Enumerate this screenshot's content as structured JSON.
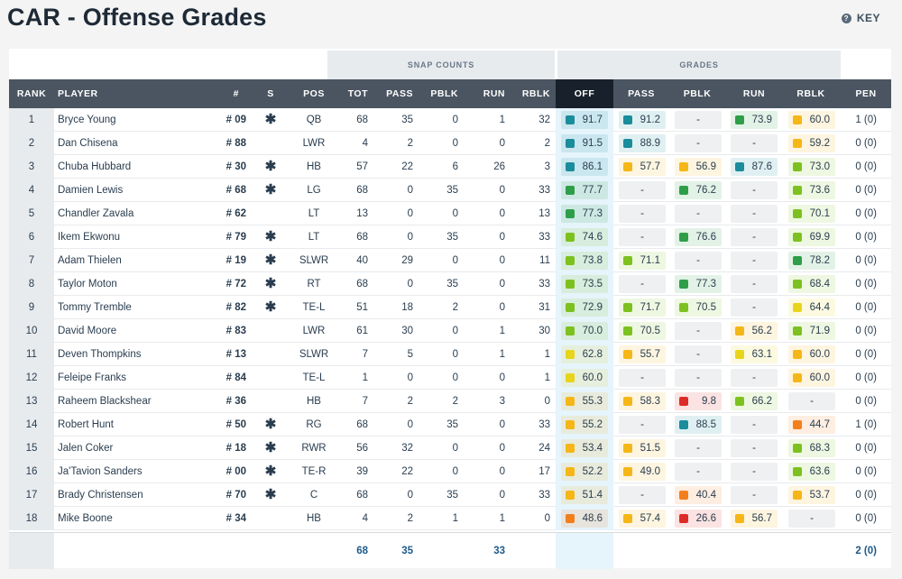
{
  "page": {
    "title": "CAR - Offense Grades",
    "key_label": "KEY"
  },
  "colors": {
    "teal": "#1a8c9c",
    "green": "#2e9e48",
    "lime": "#7cc11f",
    "yellow": "#e8d41b",
    "gold": "#f5b717",
    "orange": "#f37f1c",
    "red": "#dd2b27",
    "header_bg": "#4a5561",
    "active_header_bg": "#18212b"
  },
  "groups": {
    "snap_counts": "SNAP COUNTS",
    "grades": "GRADES"
  },
  "headers": {
    "rank": "RANK",
    "player": "PLAYER",
    "number": "#",
    "starter": "S",
    "pos": "POS",
    "tot": "TOT",
    "pass": "PASS",
    "pblk": "PBLK",
    "run": "RUN",
    "rblk": "RBLK",
    "g_off": "OFF",
    "g_pass": "PASS",
    "g_pblk": "PBLK",
    "g_run": "RUN",
    "g_rblk": "RBLK",
    "pen": "PEN"
  },
  "rows": [
    {
      "rank": "1",
      "name": "Bryce Young",
      "num": "# 09",
      "starter": "✱",
      "pos": "QB",
      "tot": "68",
      "pass": "35",
      "pblk": "0",
      "run": "1",
      "rblk": "32",
      "g": [
        [
          "91.7",
          "teal"
        ],
        [
          "91.2",
          "teal"
        ],
        [
          "-",
          ""
        ],
        [
          "73.9",
          "green"
        ],
        [
          "60.0",
          "gold"
        ]
      ],
      "pen": "1 (0)"
    },
    {
      "rank": "2",
      "name": "Dan Chisena",
      "num": "# 88",
      "starter": "",
      "pos": "LWR",
      "tot": "4",
      "pass": "2",
      "pblk": "0",
      "run": "0",
      "rblk": "2",
      "g": [
        [
          "91.5",
          "teal"
        ],
        [
          "88.9",
          "teal"
        ],
        [
          "-",
          ""
        ],
        [
          "-",
          ""
        ],
        [
          "59.2",
          "gold"
        ]
      ],
      "pen": "0 (0)"
    },
    {
      "rank": "3",
      "name": "Chuba Hubbard",
      "num": "# 30",
      "starter": "✱",
      "pos": "HB",
      "tot": "57",
      "pass": "22",
      "pblk": "6",
      "run": "26",
      "rblk": "3",
      "g": [
        [
          "86.1",
          "teal"
        ],
        [
          "57.7",
          "gold"
        ],
        [
          "56.9",
          "gold"
        ],
        [
          "87.6",
          "teal"
        ],
        [
          "73.0",
          "lime"
        ]
      ],
      "pen": "0 (0)"
    },
    {
      "rank": "4",
      "name": "Damien Lewis",
      "num": "# 68",
      "starter": "✱",
      "pos": "LG",
      "tot": "68",
      "pass": "0",
      "pblk": "35",
      "run": "0",
      "rblk": "33",
      "g": [
        [
          "77.7",
          "green"
        ],
        [
          "-",
          ""
        ],
        [
          "76.2",
          "green"
        ],
        [
          "-",
          ""
        ],
        [
          "73.6",
          "lime"
        ]
      ],
      "pen": "0 (0)"
    },
    {
      "rank": "5",
      "name": "Chandler Zavala",
      "num": "# 62",
      "starter": "",
      "pos": "LT",
      "tot": "13",
      "pass": "0",
      "pblk": "0",
      "run": "0",
      "rblk": "13",
      "g": [
        [
          "77.3",
          "green"
        ],
        [
          "-",
          ""
        ],
        [
          "-",
          ""
        ],
        [
          "-",
          ""
        ],
        [
          "70.1",
          "lime"
        ]
      ],
      "pen": "0 (0)"
    },
    {
      "rank": "6",
      "name": "Ikem Ekwonu",
      "num": "# 79",
      "starter": "✱",
      "pos": "LT",
      "tot": "68",
      "pass": "0",
      "pblk": "35",
      "run": "0",
      "rblk": "33",
      "g": [
        [
          "74.6",
          "lime"
        ],
        [
          "-",
          ""
        ],
        [
          "76.6",
          "green"
        ],
        [
          "-",
          ""
        ],
        [
          "69.9",
          "lime"
        ]
      ],
      "pen": "0 (0)"
    },
    {
      "rank": "7",
      "name": "Adam Thielen",
      "num": "# 19",
      "starter": "✱",
      "pos": "SLWR",
      "tot": "40",
      "pass": "29",
      "pblk": "0",
      "run": "0",
      "rblk": "11",
      "g": [
        [
          "73.8",
          "lime"
        ],
        [
          "71.1",
          "lime"
        ],
        [
          "-",
          ""
        ],
        [
          "-",
          ""
        ],
        [
          "78.2",
          "green"
        ]
      ],
      "pen": "0 (0)"
    },
    {
      "rank": "8",
      "name": "Taylor Moton",
      "num": "# 72",
      "starter": "✱",
      "pos": "RT",
      "tot": "68",
      "pass": "0",
      "pblk": "35",
      "run": "0",
      "rblk": "33",
      "g": [
        [
          "73.5",
          "lime"
        ],
        [
          "-",
          ""
        ],
        [
          "77.3",
          "green"
        ],
        [
          "-",
          ""
        ],
        [
          "68.4",
          "lime"
        ]
      ],
      "pen": "0 (0)"
    },
    {
      "rank": "9",
      "name": "Tommy Tremble",
      "num": "# 82",
      "starter": "✱",
      "pos": "TE-L",
      "tot": "51",
      "pass": "18",
      "pblk": "2",
      "run": "0",
      "rblk": "31",
      "g": [
        [
          "72.9",
          "lime"
        ],
        [
          "71.7",
          "lime"
        ],
        [
          "70.5",
          "lime"
        ],
        [
          "-",
          ""
        ],
        [
          "64.4",
          "yellow"
        ]
      ],
      "pen": "0 (0)"
    },
    {
      "rank": "10",
      "name": "David Moore",
      "num": "# 83",
      "starter": "",
      "pos": "LWR",
      "tot": "61",
      "pass": "30",
      "pblk": "0",
      "run": "1",
      "rblk": "30",
      "g": [
        [
          "70.0",
          "lime"
        ],
        [
          "70.5",
          "lime"
        ],
        [
          "-",
          ""
        ],
        [
          "56.2",
          "gold"
        ],
        [
          "71.9",
          "lime"
        ]
      ],
      "pen": "0 (0)"
    },
    {
      "rank": "11",
      "name": "Deven Thompkins",
      "num": "# 13",
      "starter": "",
      "pos": "SLWR",
      "tot": "7",
      "pass": "5",
      "pblk": "0",
      "run": "1",
      "rblk": "1",
      "g": [
        [
          "62.8",
          "yellow"
        ],
        [
          "55.7",
          "gold"
        ],
        [
          "-",
          ""
        ],
        [
          "63.1",
          "yellow"
        ],
        [
          "60.0",
          "gold"
        ]
      ],
      "pen": "0 (0)"
    },
    {
      "rank": "12",
      "name": "Feleipe Franks",
      "num": "# 84",
      "starter": "",
      "pos": "TE-L",
      "tot": "1",
      "pass": "0",
      "pblk": "0",
      "run": "0",
      "rblk": "1",
      "g": [
        [
          "60.0",
          "yellow"
        ],
        [
          "-",
          ""
        ],
        [
          "-",
          ""
        ],
        [
          "-",
          ""
        ],
        [
          "60.0",
          "gold"
        ]
      ],
      "pen": "0 (0)"
    },
    {
      "rank": "13",
      "name": "Raheem Blackshear",
      "num": "# 36",
      "starter": "",
      "pos": "HB",
      "tot": "7",
      "pass": "2",
      "pblk": "2",
      "run": "3",
      "rblk": "0",
      "g": [
        [
          "55.3",
          "gold"
        ],
        [
          "58.3",
          "gold"
        ],
        [
          "9.8",
          "red"
        ],
        [
          "66.2",
          "lime"
        ],
        [
          "-",
          ""
        ]
      ],
      "pen": "0 (0)"
    },
    {
      "rank": "14",
      "name": "Robert Hunt",
      "num": "# 50",
      "starter": "✱",
      "pos": "RG",
      "tot": "68",
      "pass": "0",
      "pblk": "35",
      "run": "0",
      "rblk": "33",
      "g": [
        [
          "55.2",
          "gold"
        ],
        [
          "-",
          ""
        ],
        [
          "88.5",
          "teal"
        ],
        [
          "-",
          ""
        ],
        [
          "44.7",
          "orange"
        ]
      ],
      "pen": "1 (0)"
    },
    {
      "rank": "15",
      "name": "Jalen Coker",
      "num": "# 18",
      "starter": "✱",
      "pos": "RWR",
      "tot": "56",
      "pass": "32",
      "pblk": "0",
      "run": "0",
      "rblk": "24",
      "g": [
        [
          "53.4",
          "gold"
        ],
        [
          "51.5",
          "gold"
        ],
        [
          "-",
          ""
        ],
        [
          "-",
          ""
        ],
        [
          "68.3",
          "lime"
        ]
      ],
      "pen": "0 (0)"
    },
    {
      "rank": "16",
      "name": "Ja'Tavion Sanders",
      "num": "# 00",
      "starter": "✱",
      "pos": "TE-R",
      "tot": "39",
      "pass": "22",
      "pblk": "0",
      "run": "0",
      "rblk": "17",
      "g": [
        [
          "52.2",
          "gold"
        ],
        [
          "49.0",
          "gold"
        ],
        [
          "-",
          ""
        ],
        [
          "-",
          ""
        ],
        [
          "63.6",
          "lime"
        ]
      ],
      "pen": "0 (0)"
    },
    {
      "rank": "17",
      "name": "Brady Christensen",
      "num": "# 70",
      "starter": "✱",
      "pos": "C",
      "tot": "68",
      "pass": "0",
      "pblk": "35",
      "run": "0",
      "rblk": "33",
      "g": [
        [
          "51.4",
          "gold"
        ],
        [
          "-",
          ""
        ],
        [
          "40.4",
          "orange"
        ],
        [
          "-",
          ""
        ],
        [
          "53.7",
          "gold"
        ]
      ],
      "pen": "0 (0)"
    },
    {
      "rank": "18",
      "name": "Mike Boone",
      "num": "# 34",
      "starter": "",
      "pos": "HB",
      "tot": "4",
      "pass": "2",
      "pblk": "1",
      "run": "1",
      "rblk": "0",
      "g": [
        [
          "48.6",
          "orange"
        ],
        [
          "57.4",
          "gold"
        ],
        [
          "26.6",
          "red"
        ],
        [
          "56.7",
          "gold"
        ],
        [
          "-",
          ""
        ]
      ],
      "pen": "0 (0)"
    }
  ],
  "footer": {
    "tot": "68",
    "pass": "35",
    "run": "33",
    "pen": "2 (0)"
  }
}
